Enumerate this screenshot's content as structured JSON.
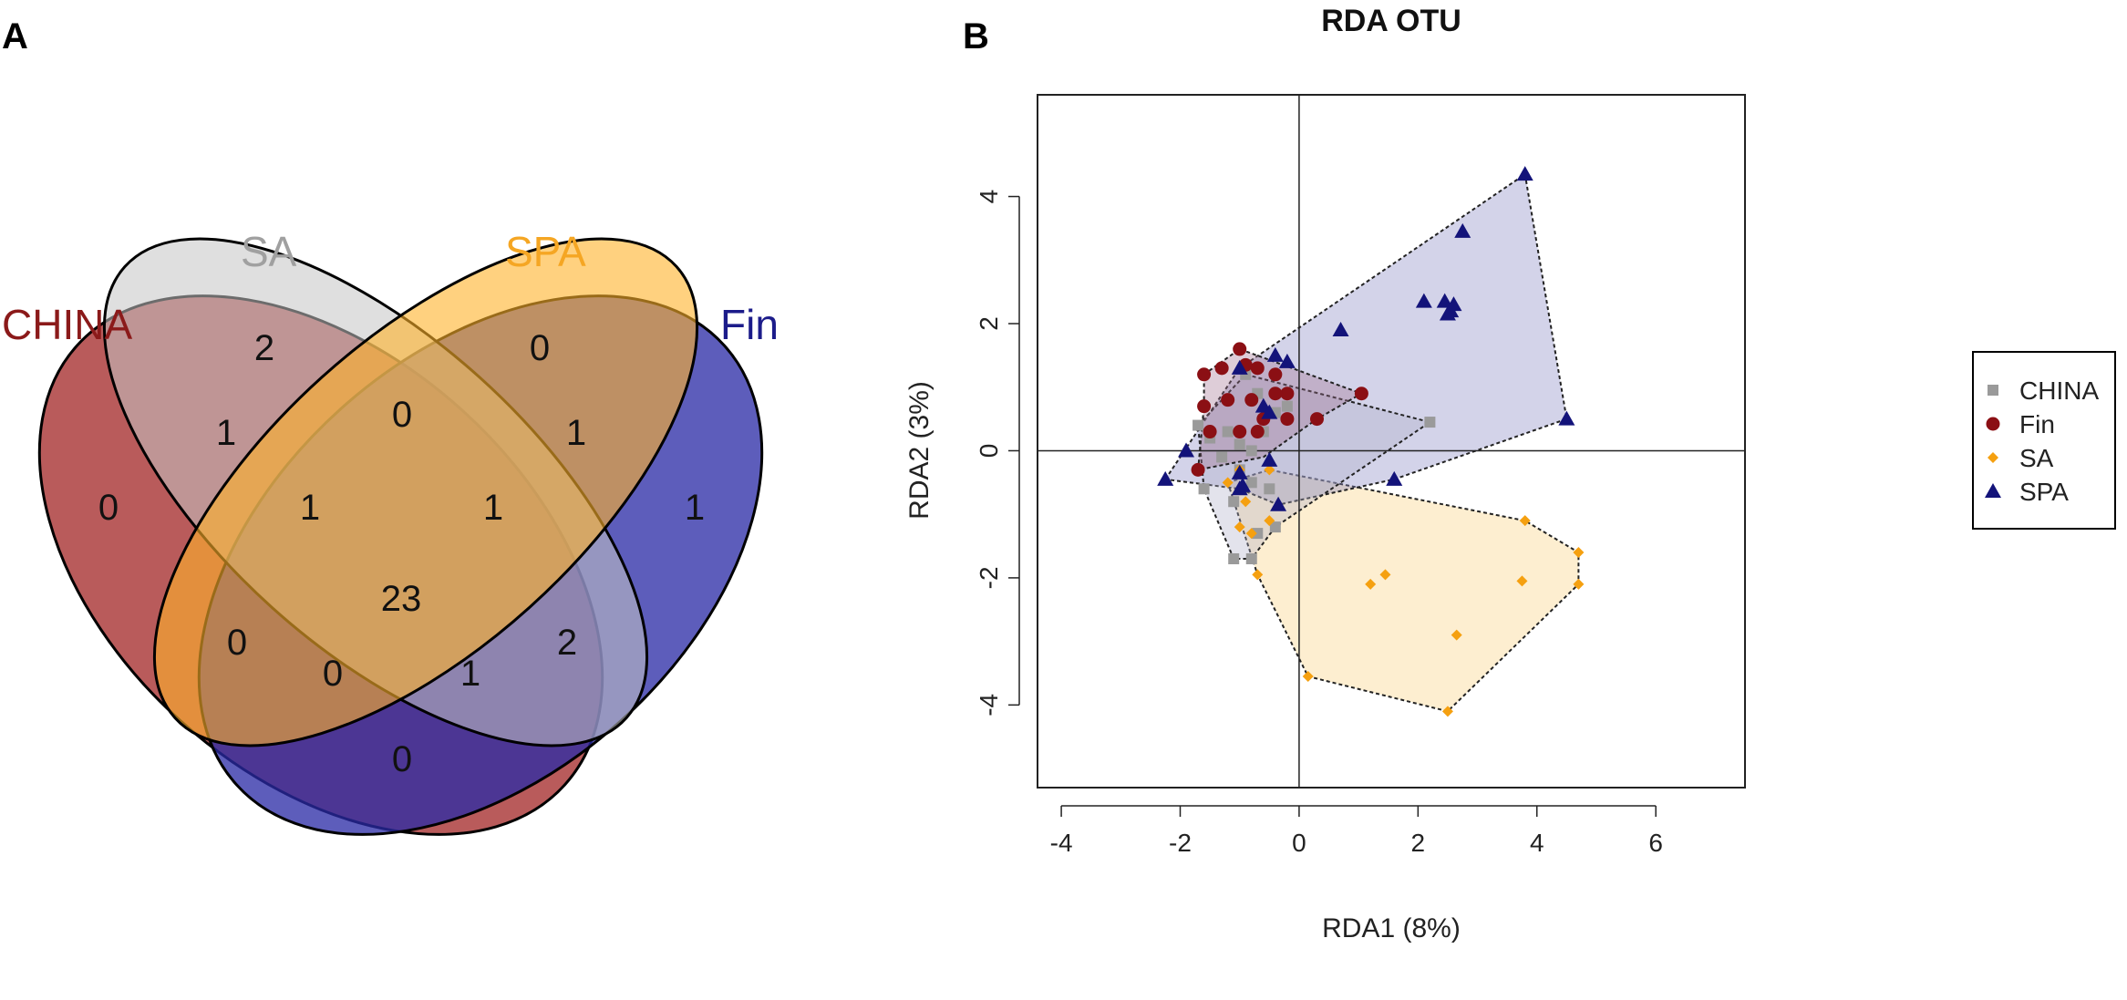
{
  "panels": {
    "a": "A",
    "b": "B"
  },
  "venn": {
    "sets": [
      {
        "name": "CHINA",
        "color": "#8B1A1A",
        "fill": "#a83232"
      },
      {
        "name": "SA",
        "color": "#a0a0a0",
        "fill": "#c4c4c4"
      },
      {
        "name": "SPA",
        "color": "#f5a623",
        "fill": "#ffb22a"
      },
      {
        "name": "Fin",
        "color": "#1c1c8a",
        "fill": "#2a2aa5"
      }
    ],
    "counts": {
      "china_only": "0",
      "sa_only": "2",
      "spa_only": "0",
      "fin_only": "1",
      "china_sa": "1",
      "sa_spa": "0",
      "spa_fin": "1",
      "china_fin": "0",
      "china_sa_spa": "1",
      "sa_spa_fin": "1",
      "china_spa": "0",
      "sa_fin": "2",
      "all": "23",
      "china_spa_fin": "0",
      "china_sa_fin": "1"
    }
  },
  "chart_data": {
    "type": "scatter",
    "title": "RDA OTU",
    "xlabel": "RDA1 (8%)",
    "ylabel": "RDA2 (3%)",
    "xlim": [
      -4.4,
      7.5
    ],
    "ylim": [
      -5.3,
      5.6
    ],
    "xticks": [
      "-4",
      "-2",
      "0",
      "2",
      "4",
      "6"
    ],
    "yticks": [
      "-4",
      "-2",
      "0",
      "2",
      "4"
    ],
    "legend_position": "right",
    "series": [
      {
        "name": "CHINA",
        "marker": "square",
        "color": "#9a9a9a",
        "hull_fill": "#b0b0c8",
        "points": [
          [
            -1.7,
            0.4
          ],
          [
            -1.5,
            0.2
          ],
          [
            -1.2,
            0.3
          ],
          [
            -1.0,
            0.1
          ],
          [
            -0.8,
            0.0
          ],
          [
            -0.6,
            0.3
          ],
          [
            -0.4,
            0.6
          ],
          [
            -0.7,
            0.9
          ],
          [
            -0.2,
            0.7
          ],
          [
            -1.3,
            -0.1
          ],
          [
            -1.0,
            -0.3
          ],
          [
            -0.8,
            -0.5
          ],
          [
            -0.5,
            -0.6
          ],
          [
            -1.1,
            -0.8
          ],
          [
            -0.7,
            -1.3
          ],
          [
            -0.4,
            -1.2
          ],
          [
            -1.1,
            -1.7
          ],
          [
            -0.8,
            -1.7
          ],
          [
            -1.6,
            -0.6
          ],
          [
            2.2,
            0.45
          ],
          [
            -0.9,
            1.2
          ]
        ],
        "hull": [
          [
            -1.7,
            0.4
          ],
          [
            -0.9,
            1.2
          ],
          [
            2.2,
            0.45
          ],
          [
            -0.4,
            -1.2
          ],
          [
            -0.8,
            -1.7
          ],
          [
            -1.1,
            -1.7
          ],
          [
            -1.6,
            -0.6
          ]
        ]
      },
      {
        "name": "Fin",
        "marker": "circle",
        "color": "#8b0f14",
        "hull_fill": "#a07090",
        "points": [
          [
            -1.6,
            1.2
          ],
          [
            -1.3,
            1.3
          ],
          [
            -1.0,
            1.6
          ],
          [
            -0.9,
            1.35
          ],
          [
            -0.7,
            1.3
          ],
          [
            -0.4,
            1.2
          ],
          [
            -0.2,
            0.9
          ],
          [
            -1.6,
            0.7
          ],
          [
            -1.2,
            0.8
          ],
          [
            -0.8,
            0.8
          ],
          [
            -0.4,
            0.9
          ],
          [
            -0.2,
            0.5
          ],
          [
            0.3,
            0.5
          ],
          [
            1.05,
            0.9
          ],
          [
            -1.5,
            0.3
          ],
          [
            -1.0,
            0.3
          ],
          [
            -0.7,
            0.3
          ],
          [
            -1.7,
            -0.3
          ],
          [
            -0.6,
            0.5
          ]
        ],
        "hull": [
          [
            -1.6,
            1.2
          ],
          [
            -1.0,
            1.6
          ],
          [
            1.05,
            0.9
          ],
          [
            0.3,
            0.5
          ],
          [
            -0.6,
            -0.1
          ],
          [
            -1.7,
            -0.3
          ],
          [
            -1.6,
            0.7
          ]
        ]
      },
      {
        "name": "SA",
        "marker": "diamond",
        "color": "#f5a010",
        "hull_fill": "#fbe3b0",
        "points": [
          [
            -1.0,
            -0.3
          ],
          [
            -1.2,
            -0.5
          ],
          [
            -0.9,
            -0.8
          ],
          [
            -1.0,
            -1.2
          ],
          [
            -0.8,
            -1.3
          ],
          [
            -0.5,
            -1.1
          ],
          [
            -0.7,
            -1.95
          ],
          [
            -0.5,
            -0.3
          ],
          [
            3.8,
            -1.1
          ],
          [
            4.7,
            -1.6
          ],
          [
            4.7,
            -2.1
          ],
          [
            3.75,
            -2.05
          ],
          [
            1.2,
            -2.1
          ],
          [
            1.45,
            -1.95
          ],
          [
            2.65,
            -2.9
          ],
          [
            2.5,
            -4.1
          ],
          [
            0.15,
            -3.55
          ]
        ],
        "hull": [
          [
            -1.2,
            -0.5
          ],
          [
            -0.5,
            -0.3
          ],
          [
            3.8,
            -1.1
          ],
          [
            4.7,
            -1.6
          ],
          [
            4.7,
            -2.1
          ],
          [
            2.5,
            -4.1
          ],
          [
            0.15,
            -3.55
          ],
          [
            -0.7,
            -1.95
          ]
        ]
      },
      {
        "name": "SPA",
        "marker": "triangle",
        "color": "#13137a",
        "hull_fill": "#8080c0",
        "points": [
          [
            3.8,
            4.35
          ],
          [
            2.75,
            3.45
          ],
          [
            2.1,
            2.35
          ],
          [
            2.45,
            2.35
          ],
          [
            2.6,
            2.3
          ],
          [
            2.55,
            2.2
          ],
          [
            2.5,
            2.15
          ],
          [
            0.7,
            1.9
          ],
          [
            -1.0,
            1.3
          ],
          [
            -0.4,
            1.5
          ],
          [
            -0.2,
            1.4
          ],
          [
            -0.6,
            0.7
          ],
          [
            -0.5,
            0.6
          ],
          [
            4.5,
            0.5
          ],
          [
            -1.9,
            0.0
          ],
          [
            -2.25,
            -0.45
          ],
          [
            -1.0,
            -0.35
          ],
          [
            -1.0,
            -0.6
          ],
          [
            -0.35,
            -0.85
          ],
          [
            -0.5,
            -0.15
          ],
          [
            1.6,
            -0.45
          ],
          [
            -0.95,
            -0.55
          ]
        ],
        "hull": [
          [
            -2.25,
            -0.45
          ],
          [
            -1.0,
            1.3
          ],
          [
            3.8,
            4.35
          ],
          [
            4.5,
            0.5
          ],
          [
            1.6,
            -0.45
          ],
          [
            -0.35,
            -0.85
          ],
          [
            -1.0,
            -0.6
          ]
        ]
      }
    ]
  }
}
